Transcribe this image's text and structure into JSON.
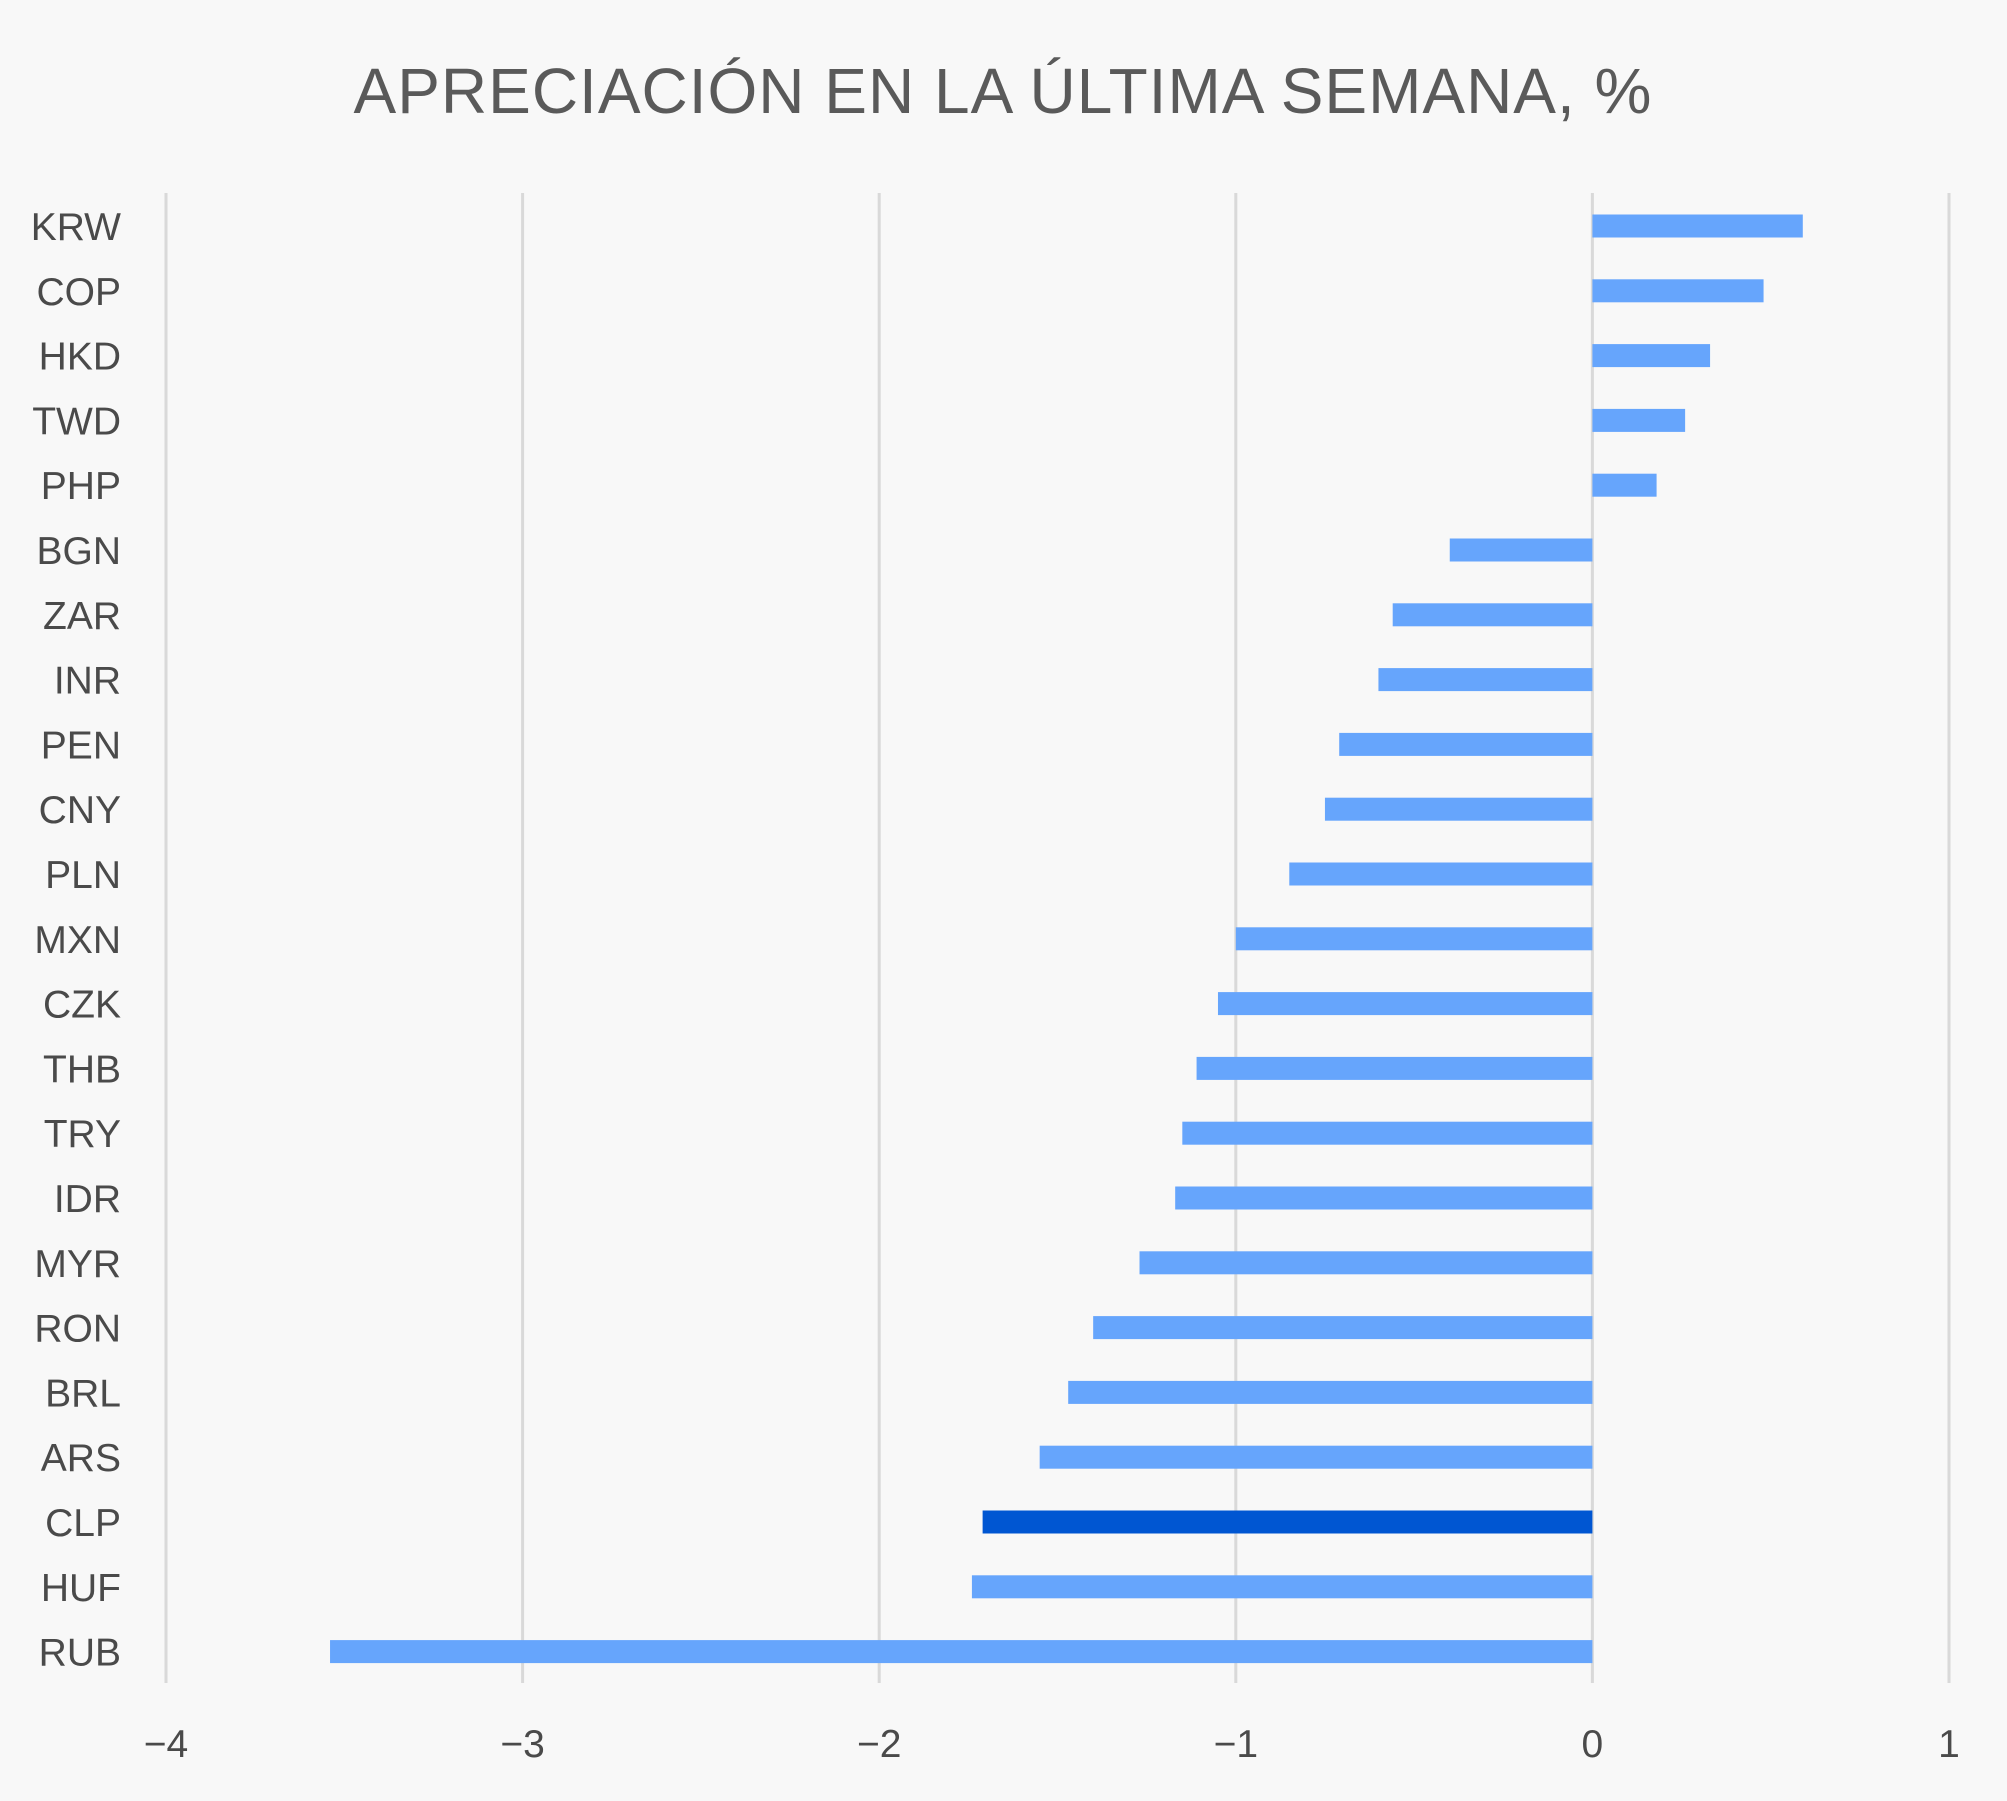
{
  "chart_data": {
    "type": "bar",
    "orientation": "horizontal",
    "title": "APRECIACIÓN EN LA ÚLTIMA SEMANA, %",
    "xlabel": "",
    "ylabel": "",
    "xlim": [
      -4,
      1
    ],
    "x_ticks": [
      -4,
      -3,
      -2,
      -1,
      0,
      1
    ],
    "x_tick_labels": [
      "-4",
      "-3",
      "-2",
      "-1",
      "0",
      "1"
    ],
    "grid": "vertical",
    "legend": "none",
    "categories": [
      "KRW",
      "COP",
      "HKD",
      "TWD",
      "PHP",
      "BGN",
      "ZAR",
      "INR",
      "PEN",
      "CNY",
      "PLN",
      "MXN",
      "CZK",
      "THB",
      "TRY",
      "IDR",
      "MYR",
      "RON",
      "BRL",
      "ARS",
      "CLP",
      "HUF",
      "RUB"
    ],
    "values": [
      0.59,
      0.48,
      0.33,
      0.26,
      0.18,
      -0.4,
      -0.56,
      -0.6,
      -0.71,
      -0.75,
      -0.85,
      -1.0,
      -1.05,
      -1.11,
      -1.15,
      -1.17,
      -1.27,
      -1.4,
      -1.47,
      -1.55,
      -1.71,
      -1.74,
      -3.54
    ],
    "colors": {
      "default": "#66a5fc",
      "highlight": "#0056d2"
    },
    "highlight": "CLP"
  }
}
